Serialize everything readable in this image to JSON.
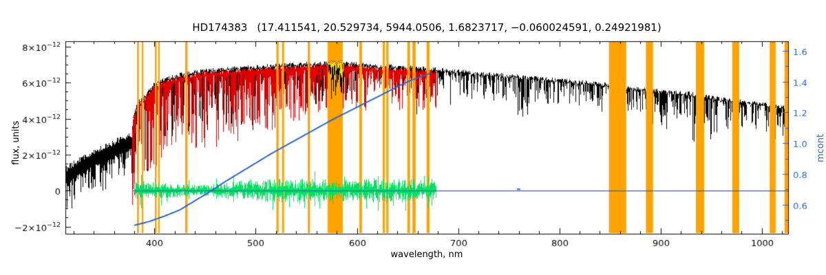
{
  "title": {
    "star_id": "HD174383",
    "params": "(17.411541, 20.529734, 5944.0506, 1.6823717, −0.060024591, 0.24921981)"
  },
  "chart_data": {
    "type": "line",
    "title": "HD174383 (17.411541, 20.529734, 5944.0506, 1.6823717, −0.060024591, 0.24921981)",
    "xlabel": "wavelength, nm",
    "ylabel_left": "flux, units",
    "ylabel_right": "mcont",
    "xlim": [
      312,
      1026
    ],
    "ylim_left_1e12": [
      -2.4,
      8.3
    ],
    "ylim_right": [
      0.41,
      1.663
    ],
    "x_major_ticks": [
      400,
      500,
      600,
      700,
      800,
      900,
      1000
    ],
    "x_minor_step": 20,
    "left_ticks": [
      {
        "value": 8,
        "label_base": "8×10",
        "label_exp": "−12"
      },
      {
        "value": 6,
        "label_base": "6×10",
        "label_exp": "−12"
      },
      {
        "value": 4,
        "label_base": "4×10",
        "label_exp": "−12"
      },
      {
        "value": 2,
        "label_base": "2×10",
        "label_exp": "−12"
      },
      {
        "value": 0,
        "label_base": "0",
        "label_exp": ""
      },
      {
        "value": -2,
        "label_base": "−2×10",
        "label_exp": "−12"
      }
    ],
    "left_minor_step": 0.5,
    "right_ticks": [
      {
        "value": 1.6,
        "label": "1.6"
      },
      {
        "value": 1.4,
        "label": "1.4"
      },
      {
        "value": 1.2,
        "label": "1.2"
      },
      {
        "value": 1.0,
        "label": "1.0"
      },
      {
        "value": 0.8,
        "label": "0.8"
      },
      {
        "value": 0.6,
        "label": "0.6"
      }
    ],
    "right_minor_step": 0.1,
    "colors": {
      "frame": "#000000",
      "observed": "#000000",
      "synthetic": "#e10000",
      "mask_band": "#ffa300",
      "masked_spectrum": "#ffe000",
      "residual": "#00e25f",
      "mcont": "#2b65cc",
      "background": "#ffffff"
    },
    "masked_bands_nm": [
      [
        382.8,
        384.6
      ],
      [
        387.4,
        389.0
      ],
      [
        400.4,
        402.0
      ],
      [
        403.6,
        405.2
      ],
      [
        430.4,
        432.6
      ],
      [
        520.4,
        522.6
      ],
      [
        526.0,
        528.0
      ],
      [
        551.4,
        553.6
      ],
      [
        571.0,
        586.0
      ],
      [
        602.4,
        605.0
      ],
      [
        625.4,
        627.6
      ],
      [
        629.0,
        631.2
      ],
      [
        649.8,
        652.4
      ],
      [
        654.8,
        658.0
      ],
      [
        668.8,
        671.8
      ],
      [
        849.0,
        866.0
      ],
      [
        885.5,
        892.5
      ],
      [
        934.8,
        943.0
      ],
      [
        970.8,
        977.6
      ],
      [
        1007.8,
        1013.6
      ],
      [
        1022.4,
        1026.0
      ]
    ],
    "observed_continuum_1e12": [
      [
        312,
        0.9
      ],
      [
        325,
        1.4
      ],
      [
        340,
        1.9
      ],
      [
        355,
        2.3
      ],
      [
        368,
        2.6
      ],
      [
        377.5,
        2.85
      ],
      [
        379,
        4.2
      ],
      [
        383,
        4.9
      ],
      [
        390,
        5.3
      ],
      [
        400,
        6.0
      ],
      [
        410,
        6.25
      ],
      [
        425,
        6.5
      ],
      [
        450,
        6.75
      ],
      [
        475,
        6.85
      ],
      [
        500,
        6.95
      ],
      [
        530,
        7.05
      ],
      [
        560,
        7.15
      ],
      [
        585,
        7.2
      ],
      [
        610,
        7.05
      ],
      [
        640,
        6.95
      ],
      [
        665,
        6.85
      ],
      [
        690,
        6.75
      ],
      [
        720,
        6.6
      ],
      [
        750,
        6.45
      ],
      [
        780,
        6.3
      ],
      [
        810,
        6.15
      ],
      [
        840,
        6.0
      ],
      [
        870,
        5.8
      ],
      [
        900,
        5.6
      ],
      [
        930,
        5.45
      ],
      [
        960,
        5.15
      ],
      [
        990,
        4.95
      ],
      [
        1020,
        4.7
      ],
      [
        1026,
        4.65
      ]
    ],
    "observed_line_depth_1e12": [
      [
        312,
        1.2
      ],
      [
        380,
        3.8
      ],
      [
        450,
        3.4
      ],
      [
        500,
        3.0
      ],
      [
        560,
        2.4
      ],
      [
        620,
        2.0
      ],
      [
        700,
        1.6
      ],
      [
        800,
        1.3
      ],
      [
        900,
        1.3
      ],
      [
        1026,
        1.2
      ]
    ],
    "uv_noise_end_nm": 377.5,
    "observed_gap_bands": [
      [
        849,
        866
      ]
    ],
    "synthetic_range_nm": [
      378,
      678
    ],
    "synthetic_line_depth_1e12": [
      [
        378,
        4.4
      ],
      [
        430,
        4.3
      ],
      [
        480,
        3.9
      ],
      [
        520,
        3.2
      ],
      [
        560,
        2.6
      ],
      [
        620,
        2.2
      ],
      [
        678,
        2.0
      ]
    ],
    "masked_fit_range_nm": [
      572,
      586
    ],
    "residual_range_nm": [
      380,
      678
    ],
    "residual_amplitude_1e12": [
      [
        380,
        0.45
      ],
      [
        400,
        0.38
      ],
      [
        430,
        0.3
      ],
      [
        455,
        0.28
      ],
      [
        480,
        0.42
      ],
      [
        500,
        0.5
      ],
      [
        520,
        0.55
      ],
      [
        545,
        0.6
      ],
      [
        565,
        0.5
      ],
      [
        580,
        0.45
      ],
      [
        600,
        0.5
      ],
      [
        625,
        0.55
      ],
      [
        645,
        0.55
      ],
      [
        665,
        0.5
      ],
      [
        678,
        0.45
      ]
    ],
    "strong_lines_nm": [
      [
        393.4,
        4.6
      ],
      [
        396.8,
        4.4
      ],
      [
        410.2,
        3.2
      ],
      [
        422.7,
        2.6
      ],
      [
        434.0,
        3.4
      ],
      [
        438.4,
        2.4
      ],
      [
        486.1,
        3.2
      ],
      [
        517.3,
        2.6
      ],
      [
        526.9,
        2.4
      ],
      [
        589.2,
        2.0
      ],
      [
        656.3,
        3.0
      ]
    ],
    "telluric_bands": [
      [
        759,
        770,
        2.4,
        0.5
      ],
      [
        810,
        838,
        1.0,
        0.22
      ],
      [
        886,
        906,
        2.2,
        0.4
      ],
      [
        926,
        956,
        2.8,
        0.45
      ],
      [
        965,
        986,
        1.6,
        0.35
      ],
      [
        1004,
        1022,
        1.8,
        0.35
      ]
    ],
    "mcont_curve": [
      [
        380,
        0.465
      ],
      [
        395,
        0.49
      ],
      [
        410,
        0.525
      ],
      [
        425,
        0.565
      ],
      [
        440,
        0.625
      ],
      [
        455,
        0.685
      ],
      [
        470,
        0.75
      ],
      [
        485,
        0.81
      ],
      [
        500,
        0.87
      ],
      [
        515,
        0.93
      ],
      [
        530,
        0.985
      ],
      [
        545,
        1.04
      ],
      [
        560,
        1.095
      ],
      [
        575,
        1.15
      ],
      [
        590,
        1.2
      ],
      [
        605,
        1.25
      ],
      [
        620,
        1.3
      ],
      [
        635,
        1.35
      ],
      [
        650,
        1.4
      ],
      [
        662,
        1.43
      ],
      [
        673,
        1.455
      ]
    ],
    "zero_line_range_nm": [
      378,
      1026
    ]
  }
}
